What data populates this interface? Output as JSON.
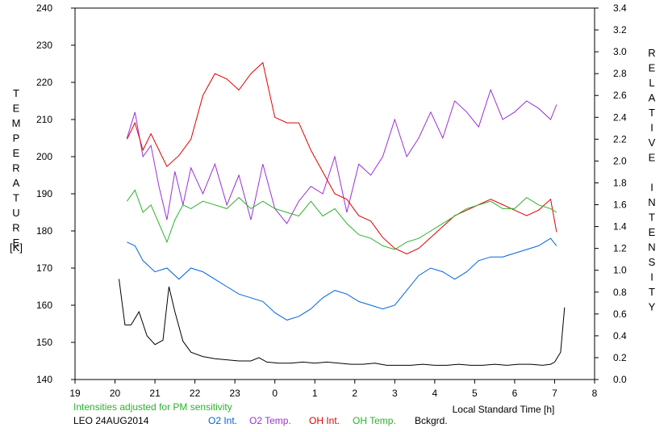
{
  "chart_data": {
    "type": "line",
    "xlabel": "Local Standard Time [h]",
    "ylabel_left": "TEMPERATURE",
    "ylabel_left_unit": "[K]",
    "ylabel_right": "RELATIVE INTENSITY",
    "x_ticks": [
      "19",
      "20",
      "21",
      "22",
      "23",
      "0",
      "1",
      "2",
      "3",
      "4",
      "5",
      "6",
      "7",
      "8"
    ],
    "y_left_ticks": [
      "140",
      "150",
      "160",
      "170",
      "180",
      "190",
      "200",
      "210",
      "220",
      "230",
      "240"
    ],
    "y_right_ticks": [
      "0.0",
      "0.2",
      "0.4",
      "0.6",
      "0.8",
      "1.0",
      "1.2",
      "1.4",
      "1.6",
      "1.8",
      "2.0",
      "2.2",
      "2.4",
      "2.6",
      "2.8",
      "3.0",
      "3.2",
      "3.4"
    ],
    "xlim": [
      19,
      32
    ],
    "ylim_left": [
      140,
      240
    ],
    "ylim_right": [
      0,
      3.4
    ],
    "grid": false,
    "note": "Intensities adjusted for PM sensitivity",
    "station_date": "LEO 24AUG2014",
    "series": [
      {
        "name": "O2 Int.",
        "color": "#0064dc",
        "axis": "left",
        "x": [
          20.3,
          20.5,
          20.7,
          21.0,
          21.3,
          21.6,
          21.9,
          22.2,
          22.5,
          22.8,
          23.1,
          23.4,
          23.7,
          24.0,
          24.3,
          24.6,
          24.9,
          25.2,
          25.5,
          25.8,
          26.1,
          26.4,
          26.7,
          27.0,
          27.3,
          27.6,
          27.9,
          28.2,
          28.5,
          28.8,
          29.1,
          29.4,
          29.7,
          30.0,
          30.3,
          30.6,
          30.9,
          31.05
        ],
        "y": [
          177,
          176,
          172,
          169,
          170,
          167,
          170,
          169,
          167,
          165,
          163,
          162,
          161,
          158,
          156,
          157,
          159,
          162,
          164,
          163,
          161,
          160,
          159,
          160,
          164,
          168,
          170,
          169,
          167,
          169,
          172,
          173,
          173,
          174,
          175,
          176,
          178,
          176
        ]
      },
      {
        "name": "O2 Temp.",
        "color": "#9b30d8",
        "axis": "left",
        "x": [
          20.3,
          20.5,
          20.7,
          20.9,
          21.1,
          21.3,
          21.5,
          21.7,
          21.9,
          22.2,
          22.5,
          22.8,
          23.1,
          23.4,
          23.7,
          24.0,
          24.3,
          24.6,
          24.9,
          25.2,
          25.5,
          25.8,
          26.1,
          26.4,
          26.7,
          27.0,
          27.3,
          27.6,
          27.9,
          28.2,
          28.5,
          28.8,
          29.1,
          29.4,
          29.7,
          30.0,
          30.3,
          30.6,
          30.9,
          31.05
        ],
        "y": [
          205,
          212,
          200,
          203,
          192,
          183,
          196,
          187,
          197,
          190,
          198,
          187,
          195,
          183,
          198,
          186,
          182,
          188,
          192,
          190,
          200,
          185,
          198,
          195,
          200,
          210,
          200,
          205,
          212,
          205,
          215,
          212,
          208,
          218,
          210,
          212,
          215,
          213,
          210,
          214
        ]
      },
      {
        "name": "OH Int.",
        "color": "#e00000",
        "axis": "right",
        "x": [
          20.3,
          20.5,
          20.7,
          20.9,
          21.1,
          21.3,
          21.6,
          21.9,
          22.2,
          22.5,
          22.8,
          23.1,
          23.4,
          23.7,
          24.0,
          24.3,
          24.6,
          24.9,
          25.2,
          25.5,
          25.8,
          26.1,
          26.4,
          26.7,
          27.0,
          27.3,
          27.6,
          27.9,
          28.2,
          28.5,
          28.8,
          29.1,
          29.4,
          29.7,
          30.0,
          30.3,
          30.6,
          30.9,
          31.05
        ],
        "y": [
          2.2,
          2.35,
          2.1,
          2.25,
          2.1,
          1.95,
          2.05,
          2.2,
          2.6,
          2.8,
          2.75,
          2.65,
          2.8,
          2.9,
          2.4,
          2.35,
          2.35,
          2.1,
          1.9,
          1.7,
          1.65,
          1.5,
          1.45,
          1.3,
          1.2,
          1.15,
          1.2,
          1.3,
          1.4,
          1.5,
          1.55,
          1.6,
          1.65,
          1.6,
          1.55,
          1.5,
          1.55,
          1.65,
          1.35
        ]
      },
      {
        "name": "OH Temp.",
        "color": "#2ab42a",
        "axis": "left",
        "x": [
          20.3,
          20.5,
          20.7,
          20.9,
          21.1,
          21.3,
          21.5,
          21.7,
          21.9,
          22.2,
          22.5,
          22.8,
          23.1,
          23.4,
          23.7,
          24.0,
          24.3,
          24.6,
          24.9,
          25.2,
          25.5,
          25.8,
          26.1,
          26.4,
          26.7,
          27.0,
          27.3,
          27.6,
          27.9,
          28.2,
          28.5,
          28.8,
          29.1,
          29.4,
          29.7,
          30.0,
          30.3,
          30.6,
          30.9,
          31.05
        ],
        "y": [
          188,
          191,
          185,
          187,
          182,
          177,
          183,
          187,
          186,
          188,
          187,
          186,
          189,
          186,
          188,
          186,
          185,
          184,
          188,
          184,
          186,
          182,
          179,
          178,
          176,
          175,
          177,
          178,
          180,
          182,
          184,
          186,
          187,
          188,
          186,
          186,
          189,
          187,
          186,
          185
        ]
      },
      {
        "name": "Bckgrd.",
        "color": "#000000",
        "axis": "right",
        "x": [
          20.1,
          20.25,
          20.4,
          20.6,
          20.8,
          21.0,
          21.2,
          21.35,
          21.5,
          21.7,
          21.9,
          22.2,
          22.5,
          22.8,
          23.1,
          23.4,
          23.6,
          23.8,
          24.1,
          24.4,
          24.7,
          25.0,
          25.3,
          25.6,
          25.9,
          26.2,
          26.5,
          26.8,
          27.1,
          27.4,
          27.7,
          28.0,
          28.3,
          28.6,
          28.9,
          29.2,
          29.5,
          29.8,
          30.1,
          30.4,
          30.7,
          30.9,
          31.0,
          31.15,
          31.25
        ],
        "y": [
          0.92,
          0.5,
          0.5,
          0.62,
          0.4,
          0.32,
          0.36,
          0.85,
          0.62,
          0.35,
          0.25,
          0.21,
          0.19,
          0.18,
          0.17,
          0.17,
          0.2,
          0.16,
          0.15,
          0.15,
          0.16,
          0.15,
          0.16,
          0.15,
          0.14,
          0.14,
          0.15,
          0.13,
          0.13,
          0.13,
          0.14,
          0.13,
          0.13,
          0.14,
          0.13,
          0.13,
          0.14,
          0.13,
          0.14,
          0.14,
          0.13,
          0.14,
          0.16,
          0.25,
          0.66
        ]
      }
    ]
  }
}
